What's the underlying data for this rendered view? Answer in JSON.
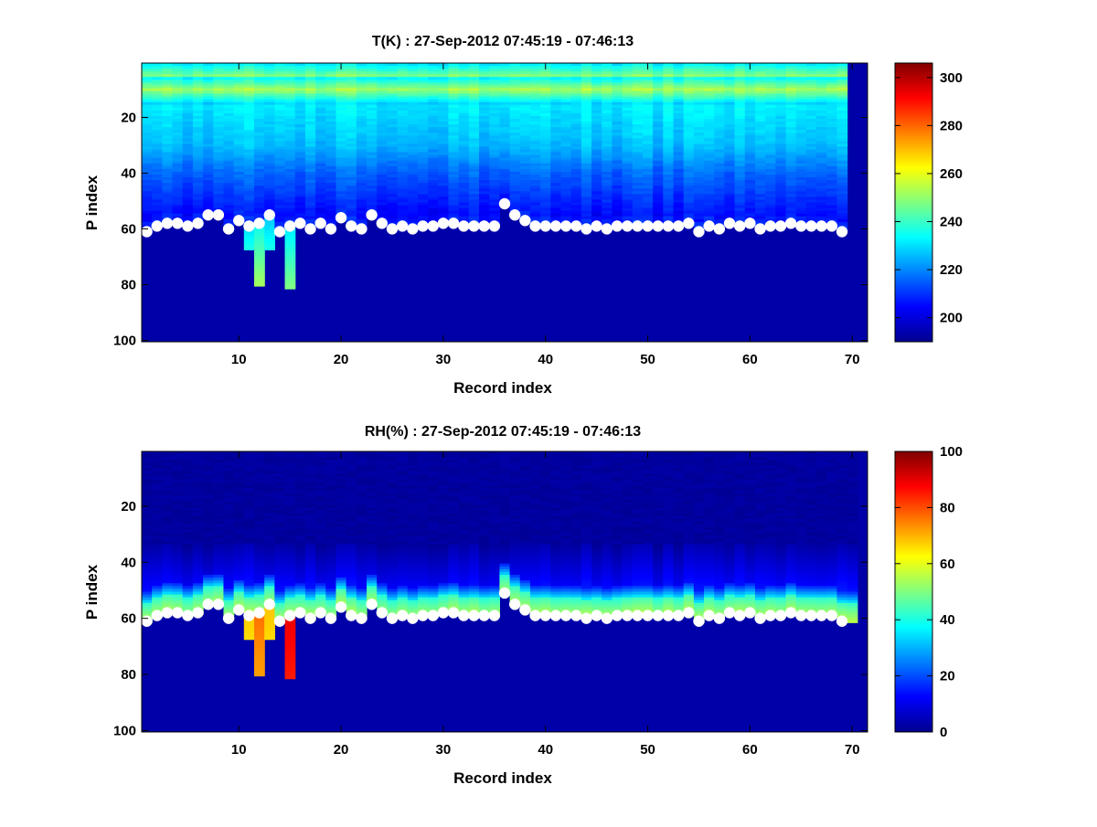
{
  "chart_data": [
    {
      "type": "heatmap",
      "title": "T(K) : 27-Sep-2012 07:45:19 - 07:46:13",
      "xlabel": "Record index",
      "ylabel": "P index",
      "xlim": [
        0.5,
        71.5
      ],
      "ylim": [
        100.5,
        0.5
      ],
      "y_reversed": true,
      "x_ticks": [
        10,
        20,
        30,
        40,
        50,
        60,
        70
      ],
      "y_ticks": [
        20,
        40,
        60,
        80,
        100
      ],
      "colormap": "jet",
      "colorbar": {
        "range": [
          190,
          306
        ],
        "ticks": [
          200,
          220,
          240,
          260,
          280,
          300
        ]
      },
      "field_profile": {
        "description": "temperature by pressure level above surface",
        "upper_warm_band_center_p": 10,
        "upper_warm_band_value": 252,
        "top_value": 232,
        "mid_value_p20_to_p40": 222,
        "near_surface_value": 205,
        "below_surface_value": 190
      },
      "partial_columns": [
        {
          "record": 11,
          "bottom_p": 67,
          "value": 236
        },
        {
          "record": 12,
          "bottom_p": 80,
          "value": 252
        },
        {
          "record": 13,
          "bottom_p": 67,
          "value": 236
        },
        {
          "record": 15,
          "bottom_p": 81,
          "value": 248
        }
      ],
      "missing_columns": [
        70
      ],
      "series": [
        {
          "type": "scatter",
          "marker": "white-circle",
          "x": [
            1,
            2,
            3,
            4,
            5,
            6,
            7,
            8,
            9,
            10,
            11,
            12,
            13,
            14,
            15,
            16,
            17,
            18,
            19,
            20,
            21,
            22,
            23,
            24,
            25,
            26,
            27,
            28,
            29,
            30,
            31,
            32,
            33,
            34,
            35,
            36,
            37,
            38,
            39,
            40,
            41,
            42,
            43,
            44,
            45,
            46,
            47,
            48,
            49,
            50,
            51,
            52,
            53,
            54,
            55,
            56,
            57,
            58,
            59,
            60,
            61,
            62,
            63,
            64,
            65,
            66,
            67,
            68,
            69
          ],
          "y": [
            61,
            59,
            58,
            58,
            59,
            58,
            55,
            55,
            60,
            57,
            59,
            58,
            55,
            61,
            59,
            58,
            60,
            58,
            60,
            56,
            59,
            60,
            55,
            58,
            60,
            59,
            60,
            59,
            59,
            58,
            58,
            59,
            59,
            59,
            59,
            51,
            55,
            57,
            59,
            59,
            59,
            59,
            59,
            60,
            59,
            60,
            59,
            59,
            59,
            59,
            59,
            59,
            59,
            58,
            61,
            59,
            60,
            58,
            59,
            58,
            60,
            59,
            59,
            58,
            59,
            59,
            59,
            59,
            61
          ]
        }
      ]
    },
    {
      "type": "heatmap",
      "title": "RH(%) : 27-Sep-2012 07:45:19 - 07:46:13",
      "xlabel": "Record index",
      "ylabel": "P index",
      "xlim": [
        0.5,
        71.5
      ],
      "ylim": [
        100.5,
        0.5
      ],
      "y_reversed": true,
      "x_ticks": [
        10,
        20,
        30,
        40,
        50,
        60,
        70
      ],
      "y_ticks": [
        20,
        40,
        60,
        80,
        100
      ],
      "colormap": "jet",
      "colorbar": {
        "range": [
          0,
          100
        ],
        "ticks": [
          0,
          20,
          40,
          60,
          80,
          100
        ]
      },
      "field_profile": {
        "description": "relative humidity by pressure level above surface",
        "upper_value": 2,
        "mid_value_p35_to_p45": 10,
        "humid_layer_value_near_surface": 55,
        "below_surface_value": 0
      },
      "partial_columns": [
        {
          "record": 11,
          "bottom_p": 67,
          "value": 66
        },
        {
          "record": 12,
          "bottom_p": 80,
          "value": 72
        },
        {
          "record": 13,
          "bottom_p": 67,
          "value": 66
        },
        {
          "record": 15,
          "bottom_p": 81,
          "value": 85
        }
      ],
      "missing_columns": [],
      "series": [
        {
          "type": "scatter",
          "marker": "white-circle",
          "x": [
            1,
            2,
            3,
            4,
            5,
            6,
            7,
            8,
            9,
            10,
            11,
            12,
            13,
            14,
            15,
            16,
            17,
            18,
            19,
            20,
            21,
            22,
            23,
            24,
            25,
            26,
            27,
            28,
            29,
            30,
            31,
            32,
            33,
            34,
            35,
            36,
            37,
            38,
            39,
            40,
            41,
            42,
            43,
            44,
            45,
            46,
            47,
            48,
            49,
            50,
            51,
            52,
            53,
            54,
            55,
            56,
            57,
            58,
            59,
            60,
            61,
            62,
            63,
            64,
            65,
            66,
            67,
            68,
            69
          ],
          "y": [
            61,
            59,
            58,
            58,
            59,
            58,
            55,
            55,
            60,
            57,
            59,
            58,
            55,
            61,
            59,
            58,
            60,
            58,
            60,
            56,
            59,
            60,
            55,
            58,
            60,
            59,
            60,
            59,
            59,
            58,
            58,
            59,
            59,
            59,
            59,
            51,
            55,
            57,
            59,
            59,
            59,
            59,
            59,
            60,
            59,
            60,
            59,
            59,
            59,
            59,
            59,
            59,
            59,
            58,
            61,
            59,
            60,
            58,
            59,
            58,
            60,
            59,
            59,
            58,
            59,
            59,
            59,
            59,
            61
          ]
        }
      ]
    }
  ]
}
